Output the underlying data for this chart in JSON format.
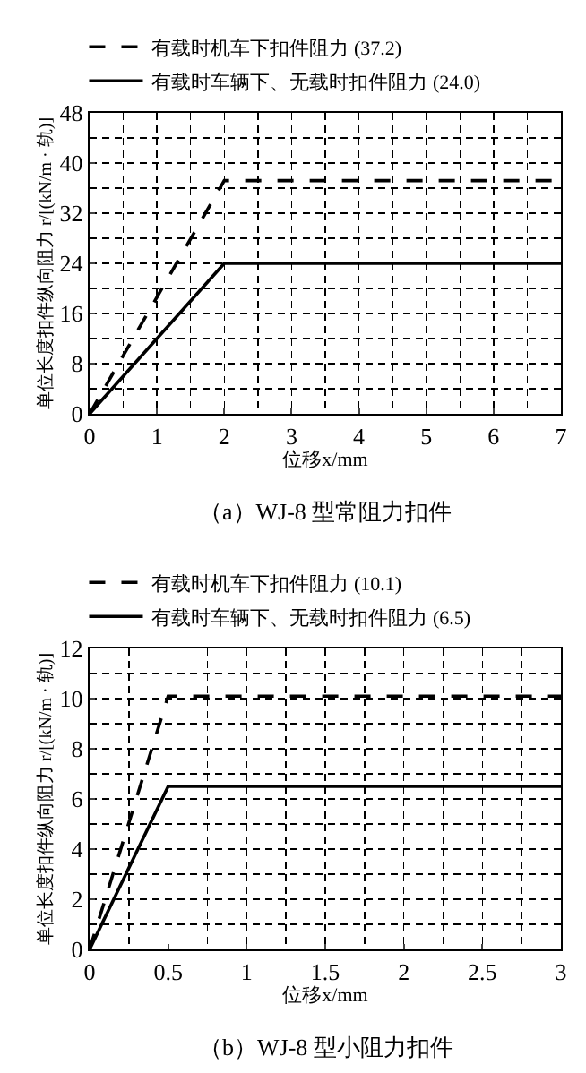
{
  "chart_data": [
    {
      "type": "line",
      "title": "（a）WJ-8 型常阻力扣件",
      "xlabel": "位移x/mm",
      "ylabel": "单位长度扣件纵向阻力 r/[(kN/m · 轨)]",
      "xlim": [
        0,
        7
      ],
      "xticks": [
        0,
        1,
        2,
        3,
        4,
        5,
        6,
        7
      ],
      "ylim": [
        0,
        48
      ],
      "yticks": [
        0,
        8,
        16,
        24,
        32,
        40,
        48
      ],
      "grid": true,
      "legend": "top left",
      "marker": "none",
      "series": [
        {
          "name": "有载时机车下扣件阻力 (37.2)",
          "color": "#000000",
          "line_style": "dashed",
          "x": [
            0,
            2,
            7
          ],
          "values": [
            0,
            37.2,
            37.2
          ]
        },
        {
          "name": "有载时车辆下、无载时扣件阻力 (24.0)",
          "color": "#000000",
          "line_style": "solid",
          "x": [
            0,
            2,
            7
          ],
          "values": [
            0,
            24.0,
            24.0
          ]
        }
      ]
    },
    {
      "type": "line",
      "title": "（b）WJ-8 型小阻力扣件",
      "xlabel": "位移x/mm",
      "ylabel": "单位长度扣件纵向阻力 r/[(kN/m · 轨)]",
      "xlim": [
        0,
        3
      ],
      "xticks": [
        0,
        0.5,
        1,
        1.5,
        2,
        2.5,
        3
      ],
      "ylim": [
        0,
        12
      ],
      "yticks": [
        0,
        2,
        4,
        6,
        8,
        10,
        12
      ],
      "grid": true,
      "legend": "top left",
      "marker": "none",
      "series": [
        {
          "name": "有载时机车下扣件阻力 (10.1)",
          "color": "#000000",
          "line_style": "dashed",
          "x": [
            0,
            0.5,
            3
          ],
          "values": [
            0,
            10.1,
            10.1
          ]
        },
        {
          "name": "有载时车辆下、无载时扣件阻力 (6.5)",
          "color": "#000000",
          "line_style": "solid",
          "x": [
            0,
            0.5,
            3
          ],
          "values": [
            0,
            6.5,
            6.5
          ]
        }
      ]
    }
  ]
}
